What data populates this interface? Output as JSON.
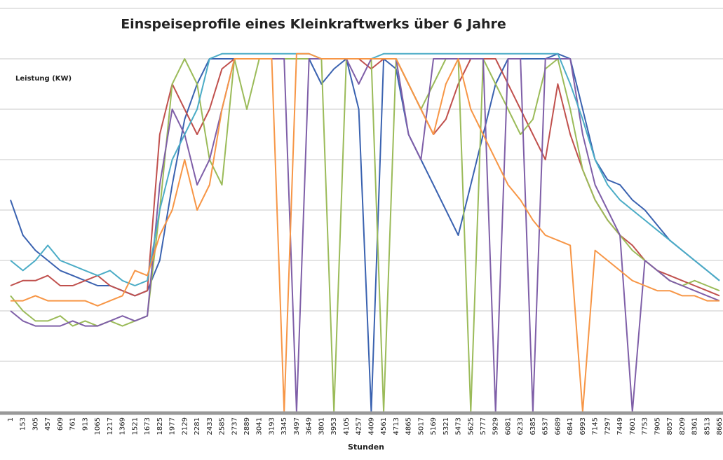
{
  "chart_data": {
    "type": "line",
    "title": "Einspeiseprofile eines Kleinkraftwerks über 6 Jahre",
    "y_label": "Leistung (KW)",
    "x_label": "Stunden",
    "categories": [
      "1",
      "153",
      "305",
      "457",
      "609",
      "761",
      "913",
      "1065",
      "1217",
      "1369",
      "1521",
      "1673",
      "1825",
      "1977",
      "2129",
      "2281",
      "2433",
      "2585",
      "2737",
      "2889",
      "3041",
      "3193",
      "3345",
      "3497",
      "3649",
      "3801",
      "3953",
      "4105",
      "4257",
      "4409",
      "4561",
      "4713",
      "4865",
      "5017",
      "5169",
      "5321",
      "5473",
      "5625",
      "5777",
      "5929",
      "6081",
      "6233",
      "6385",
      "6537",
      "6689",
      "6841",
      "6993",
      "7145",
      "7297",
      "7449",
      "7601",
      "7753",
      "7905",
      "8057",
      "8209",
      "8361",
      "8513",
      "8665"
    ],
    "ylim": [
      0,
      8
    ],
    "yticks": [
      0,
      1,
      2,
      3,
      4,
      5,
      6,
      7,
      8
    ],
    "grid": true,
    "series": [
      {
        "color": "#3a62b0",
        "values": [
          4.2,
          3.5,
          3.2,
          3.0,
          2.8,
          2.7,
          2.6,
          2.5,
          2.5,
          2.4,
          2.3,
          2.4,
          3.0,
          4.5,
          5.8,
          6.5,
          7.0,
          7.0,
          7.0,
          7.0,
          7.0,
          7.0,
          7.0,
          7.0,
          7.0,
          6.5,
          6.8,
          7.0,
          6.0,
          0,
          7.0,
          6.8,
          5.5,
          5.0,
          4.5,
          4.0,
          3.5,
          4.5,
          5.5,
          6.5,
          7.0,
          7.0,
          7.0,
          7.0,
          7.1,
          7.0,
          6.0,
          5.0,
          4.6,
          4.5,
          4.2,
          4.0,
          3.7,
          3.4,
          3.2,
          3.0,
          2.8,
          2.6
        ]
      },
      {
        "color": "#c0504d",
        "values": [
          2.5,
          2.6,
          2.6,
          2.7,
          2.5,
          2.5,
          2.6,
          2.7,
          2.5,
          2.4,
          2.3,
          2.4,
          5.5,
          6.5,
          6.0,
          5.5,
          6.0,
          6.8,
          7.0,
          7.0,
          7.0,
          7.0,
          7.0,
          7.0,
          7.0,
          7.0,
          7.0,
          7.0,
          7.0,
          6.8,
          7.0,
          7.0,
          6.5,
          6.0,
          5.5,
          5.8,
          6.5,
          7.0,
          7.0,
          7.0,
          6.5,
          6.0,
          5.5,
          5.0,
          6.5,
          5.5,
          4.8,
          4.2,
          3.8,
          3.5,
          3.3,
          3.0,
          2.8,
          2.7,
          2.6,
          2.5,
          2.4,
          2.3
        ]
      },
      {
        "color": "#9bbb59",
        "values": [
          2.3,
          2.0,
          1.8,
          1.8,
          1.9,
          1.7,
          1.8,
          1.7,
          1.8,
          1.7,
          1.8,
          1.9,
          4.0,
          6.5,
          7.0,
          6.5,
          5.0,
          4.5,
          7.0,
          6.0,
          7.0,
          7.0,
          7.0,
          7.0,
          7.0,
          7.0,
          0,
          7.0,
          7.0,
          7.0,
          0,
          7.0,
          6.5,
          6.0,
          6.5,
          7.0,
          7.0,
          0,
          7.0,
          6.5,
          6.0,
          5.5,
          5.8,
          6.8,
          7.0,
          6.0,
          4.8,
          4.2,
          3.8,
          3.5,
          3.2,
          3.0,
          2.8,
          2.6,
          2.5,
          2.6,
          2.5,
          2.4
        ]
      },
      {
        "color": "#7f5fa8",
        "values": [
          2.0,
          1.8,
          1.7,
          1.7,
          1.7,
          1.8,
          1.7,
          1.7,
          1.8,
          1.9,
          1.8,
          1.9,
          4.5,
          6.0,
          5.5,
          4.5,
          5.0,
          6.0,
          7.0,
          7.0,
          7.0,
          7.0,
          7.0,
          0,
          7.0,
          7.0,
          7.0,
          7.0,
          6.5,
          7.0,
          7.0,
          7.0,
          5.5,
          5.0,
          7.0,
          7.0,
          7.0,
          7.0,
          7.0,
          0,
          7.0,
          7.0,
          0,
          7.0,
          7.0,
          7.0,
          5.5,
          4.5,
          4.0,
          3.5,
          0,
          3.0,
          2.8,
          2.6,
          2.5,
          2.4,
          2.3,
          2.2
        ]
      },
      {
        "color": "#4bacc6",
        "values": [
          3.0,
          2.8,
          3.0,
          3.3,
          3.0,
          2.9,
          2.8,
          2.7,
          2.8,
          2.6,
          2.5,
          2.6,
          4.0,
          5.0,
          5.5,
          6.0,
          7.0,
          7.1,
          7.1,
          7.1,
          7.1,
          7.1,
          7.1,
          7.1,
          7.1,
          7.0,
          7.0,
          7.0,
          7.0,
          7.0,
          7.1,
          7.1,
          7.1,
          7.1,
          7.1,
          7.1,
          7.1,
          7.1,
          7.1,
          7.1,
          7.1,
          7.1,
          7.1,
          7.1,
          7.1,
          6.5,
          5.8,
          5.0,
          4.5,
          4.2,
          4.0,
          3.8,
          3.6,
          3.4,
          3.2,
          3.0,
          2.8,
          2.6
        ]
      },
      {
        "color": "#f79646",
        "values": [
          2.2,
          2.2,
          2.3,
          2.2,
          2.2,
          2.2,
          2.2,
          2.1,
          2.2,
          2.3,
          2.8,
          2.7,
          3.5,
          4.0,
          5.0,
          4.0,
          4.5,
          6.0,
          7.0,
          7.0,
          7.0,
          7.0,
          0,
          7.1,
          7.1,
          7.0,
          7.0,
          7.0,
          7.0,
          7.0,
          7.0,
          7.0,
          6.5,
          6.0,
          5.5,
          6.5,
          7.0,
          6.0,
          5.5,
          5.0,
          4.5,
          4.2,
          3.8,
          3.5,
          3.4,
          3.3,
          0,
          3.2,
          3.0,
          2.8,
          2.6,
          2.5,
          2.4,
          2.4,
          2.3,
          2.3,
          2.2,
          2.2
        ]
      }
    ]
  }
}
